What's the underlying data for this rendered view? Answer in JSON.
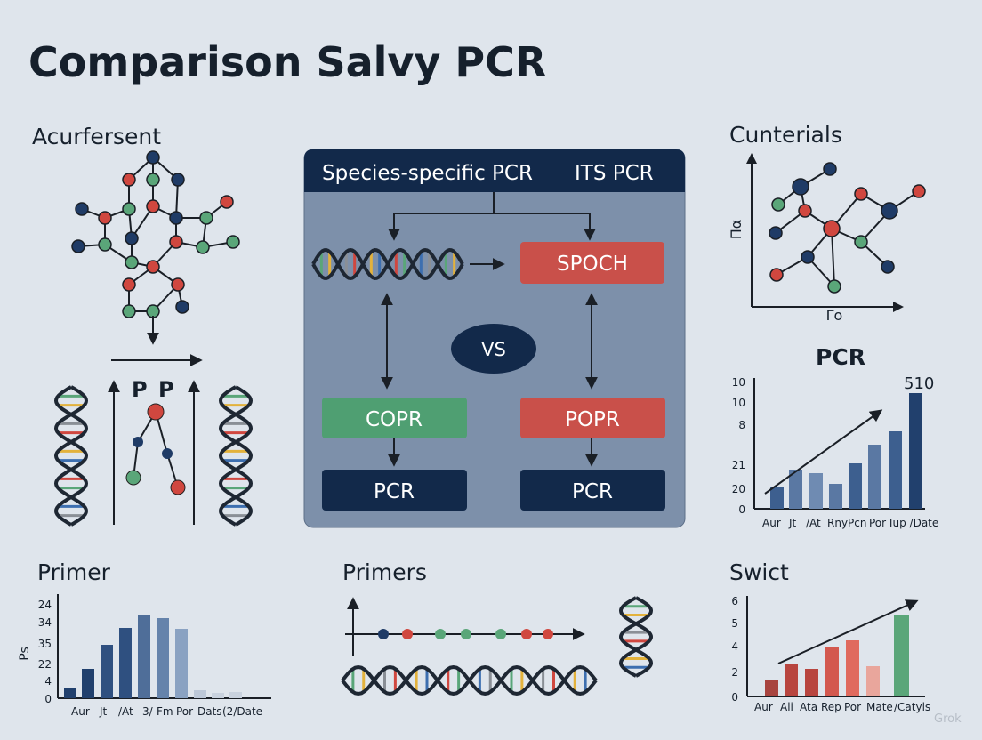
{
  "title": "Comparison Salvy PCR",
  "left_panel": {
    "title": "Acurfersent",
    "labels": [
      "P",
      "P"
    ]
  },
  "center_panel": {
    "header": [
      "Species-specific PCR",
      "ITS PCR"
    ],
    "nodes": [
      "SPOCH",
      "VS",
      "COPR",
      "POPR",
      "PCR",
      "PCR"
    ]
  },
  "top_right_panel": {
    "title": "Cunterials",
    "y_label": "Πα",
    "x_label": "Γo"
  },
  "pcr_chart": {
    "title": "PCR",
    "annotation": "510",
    "y_labels": [
      "10",
      "10",
      "8",
      "21",
      "20",
      "0"
    ],
    "x_labels": [
      "Aur",
      "Jt",
      "/At",
      "Rny",
      "Pcn",
      "Por",
      "Tup /Date"
    ]
  },
  "primer_chart": {
    "title": "Primer",
    "y_label": "Ps",
    "y_labels": [
      "24",
      "34",
      "35",
      "22",
      "4",
      "0"
    ],
    "x_labels": [
      "Aur",
      "Jt",
      "/At",
      "3/",
      "Fm",
      "Por",
      "Dats",
      "(2/Date"
    ]
  },
  "primers_panel": {
    "title": "Primers"
  },
  "swict_chart": {
    "title": "Swict",
    "y_labels": [
      "6",
      "5",
      "4",
      "2",
      "0"
    ],
    "x_labels": [
      "Aur",
      "Ali",
      "Ata",
      "Rep",
      "Por",
      "Mate",
      "/Catyls"
    ]
  },
  "watermark": "Grok"
}
